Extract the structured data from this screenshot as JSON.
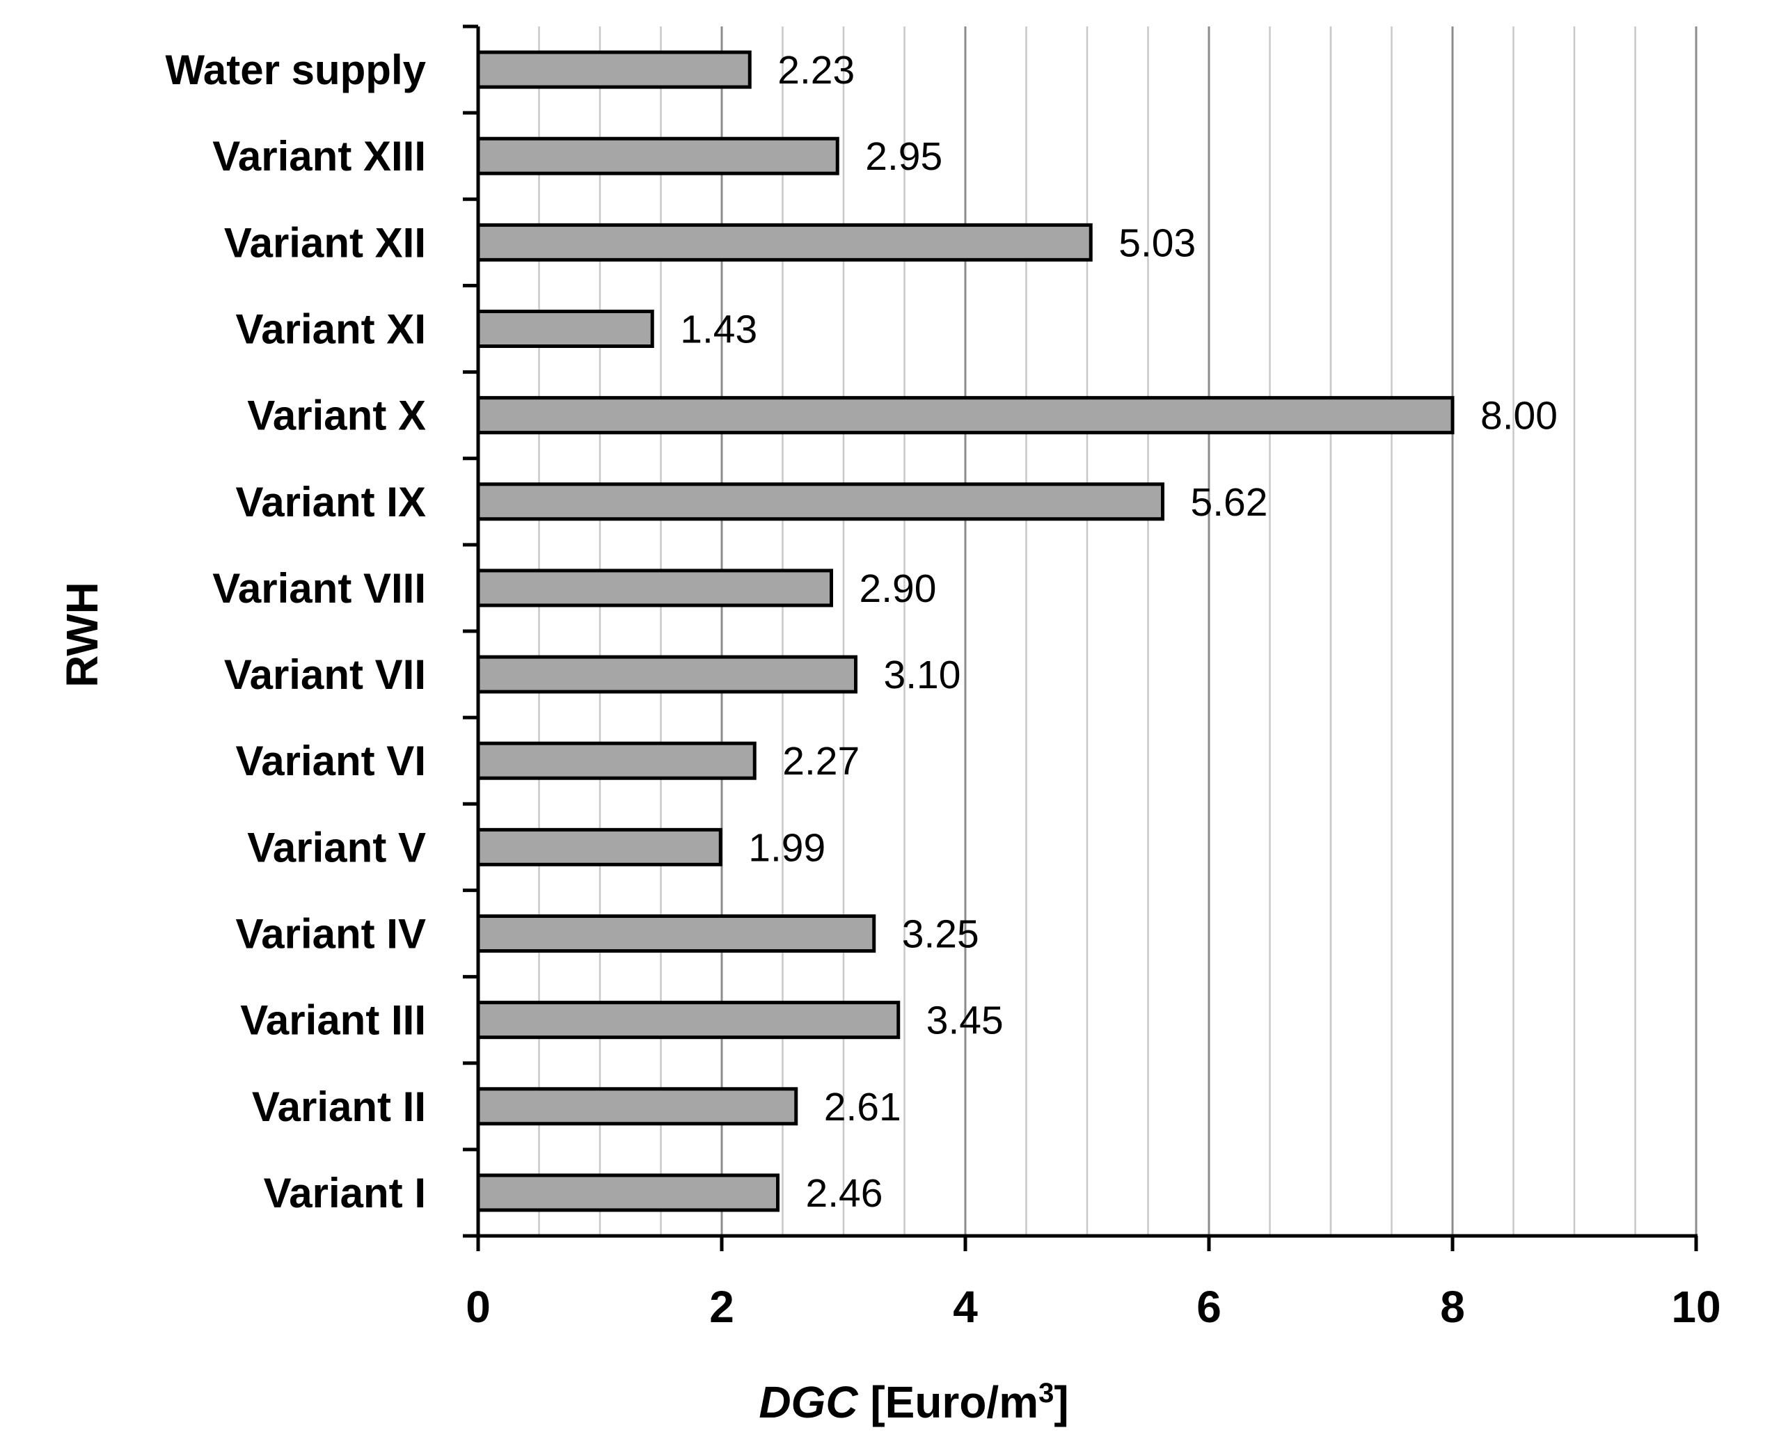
{
  "chart_data": {
    "type": "bar",
    "orientation": "horizontal",
    "categories": [
      "Water supply",
      "Variant XIII",
      "Variant XII",
      "Variant XI",
      "Variant X",
      "Variant IX",
      "Variant VIII",
      "Variant VII",
      "Variant VI",
      "Variant V",
      "Variant IV",
      "Variant III",
      "Variant II",
      "Variant I"
    ],
    "values": [
      2.23,
      2.95,
      5.03,
      1.43,
      8.0,
      5.62,
      2.9,
      3.1,
      2.27,
      1.99,
      3.25,
      3.45,
      2.61,
      2.46
    ],
    "value_labels": [
      "2.23",
      "2.95",
      "5.03",
      "1.43",
      "8.00",
      "5.62",
      "2.90",
      "3.10",
      "2.27",
      "1.99",
      "3.25",
      "3.45",
      "2.61",
      "2.46"
    ],
    "xlim": [
      0,
      10
    ],
    "x_ticks": [
      0,
      2,
      4,
      6,
      8,
      10
    ],
    "x_tick_labels": [
      "0",
      "2",
      "4",
      "6",
      "8",
      "10"
    ],
    "minor_grid_step": 0.5,
    "ylabel": "RWH",
    "xlabel": {
      "italic_part": "DGC",
      "unit_part": " [Euro/m",
      "superscript": "3",
      "closing": "]"
    },
    "grid": true,
    "legend": "none",
    "colors": {
      "bar_fill": "#a6a6a6",
      "bar_stroke": "#000000",
      "major_grid": "#8c8c8c",
      "minor_grid": "#c8c8c8",
      "axis": "#000000"
    }
  }
}
